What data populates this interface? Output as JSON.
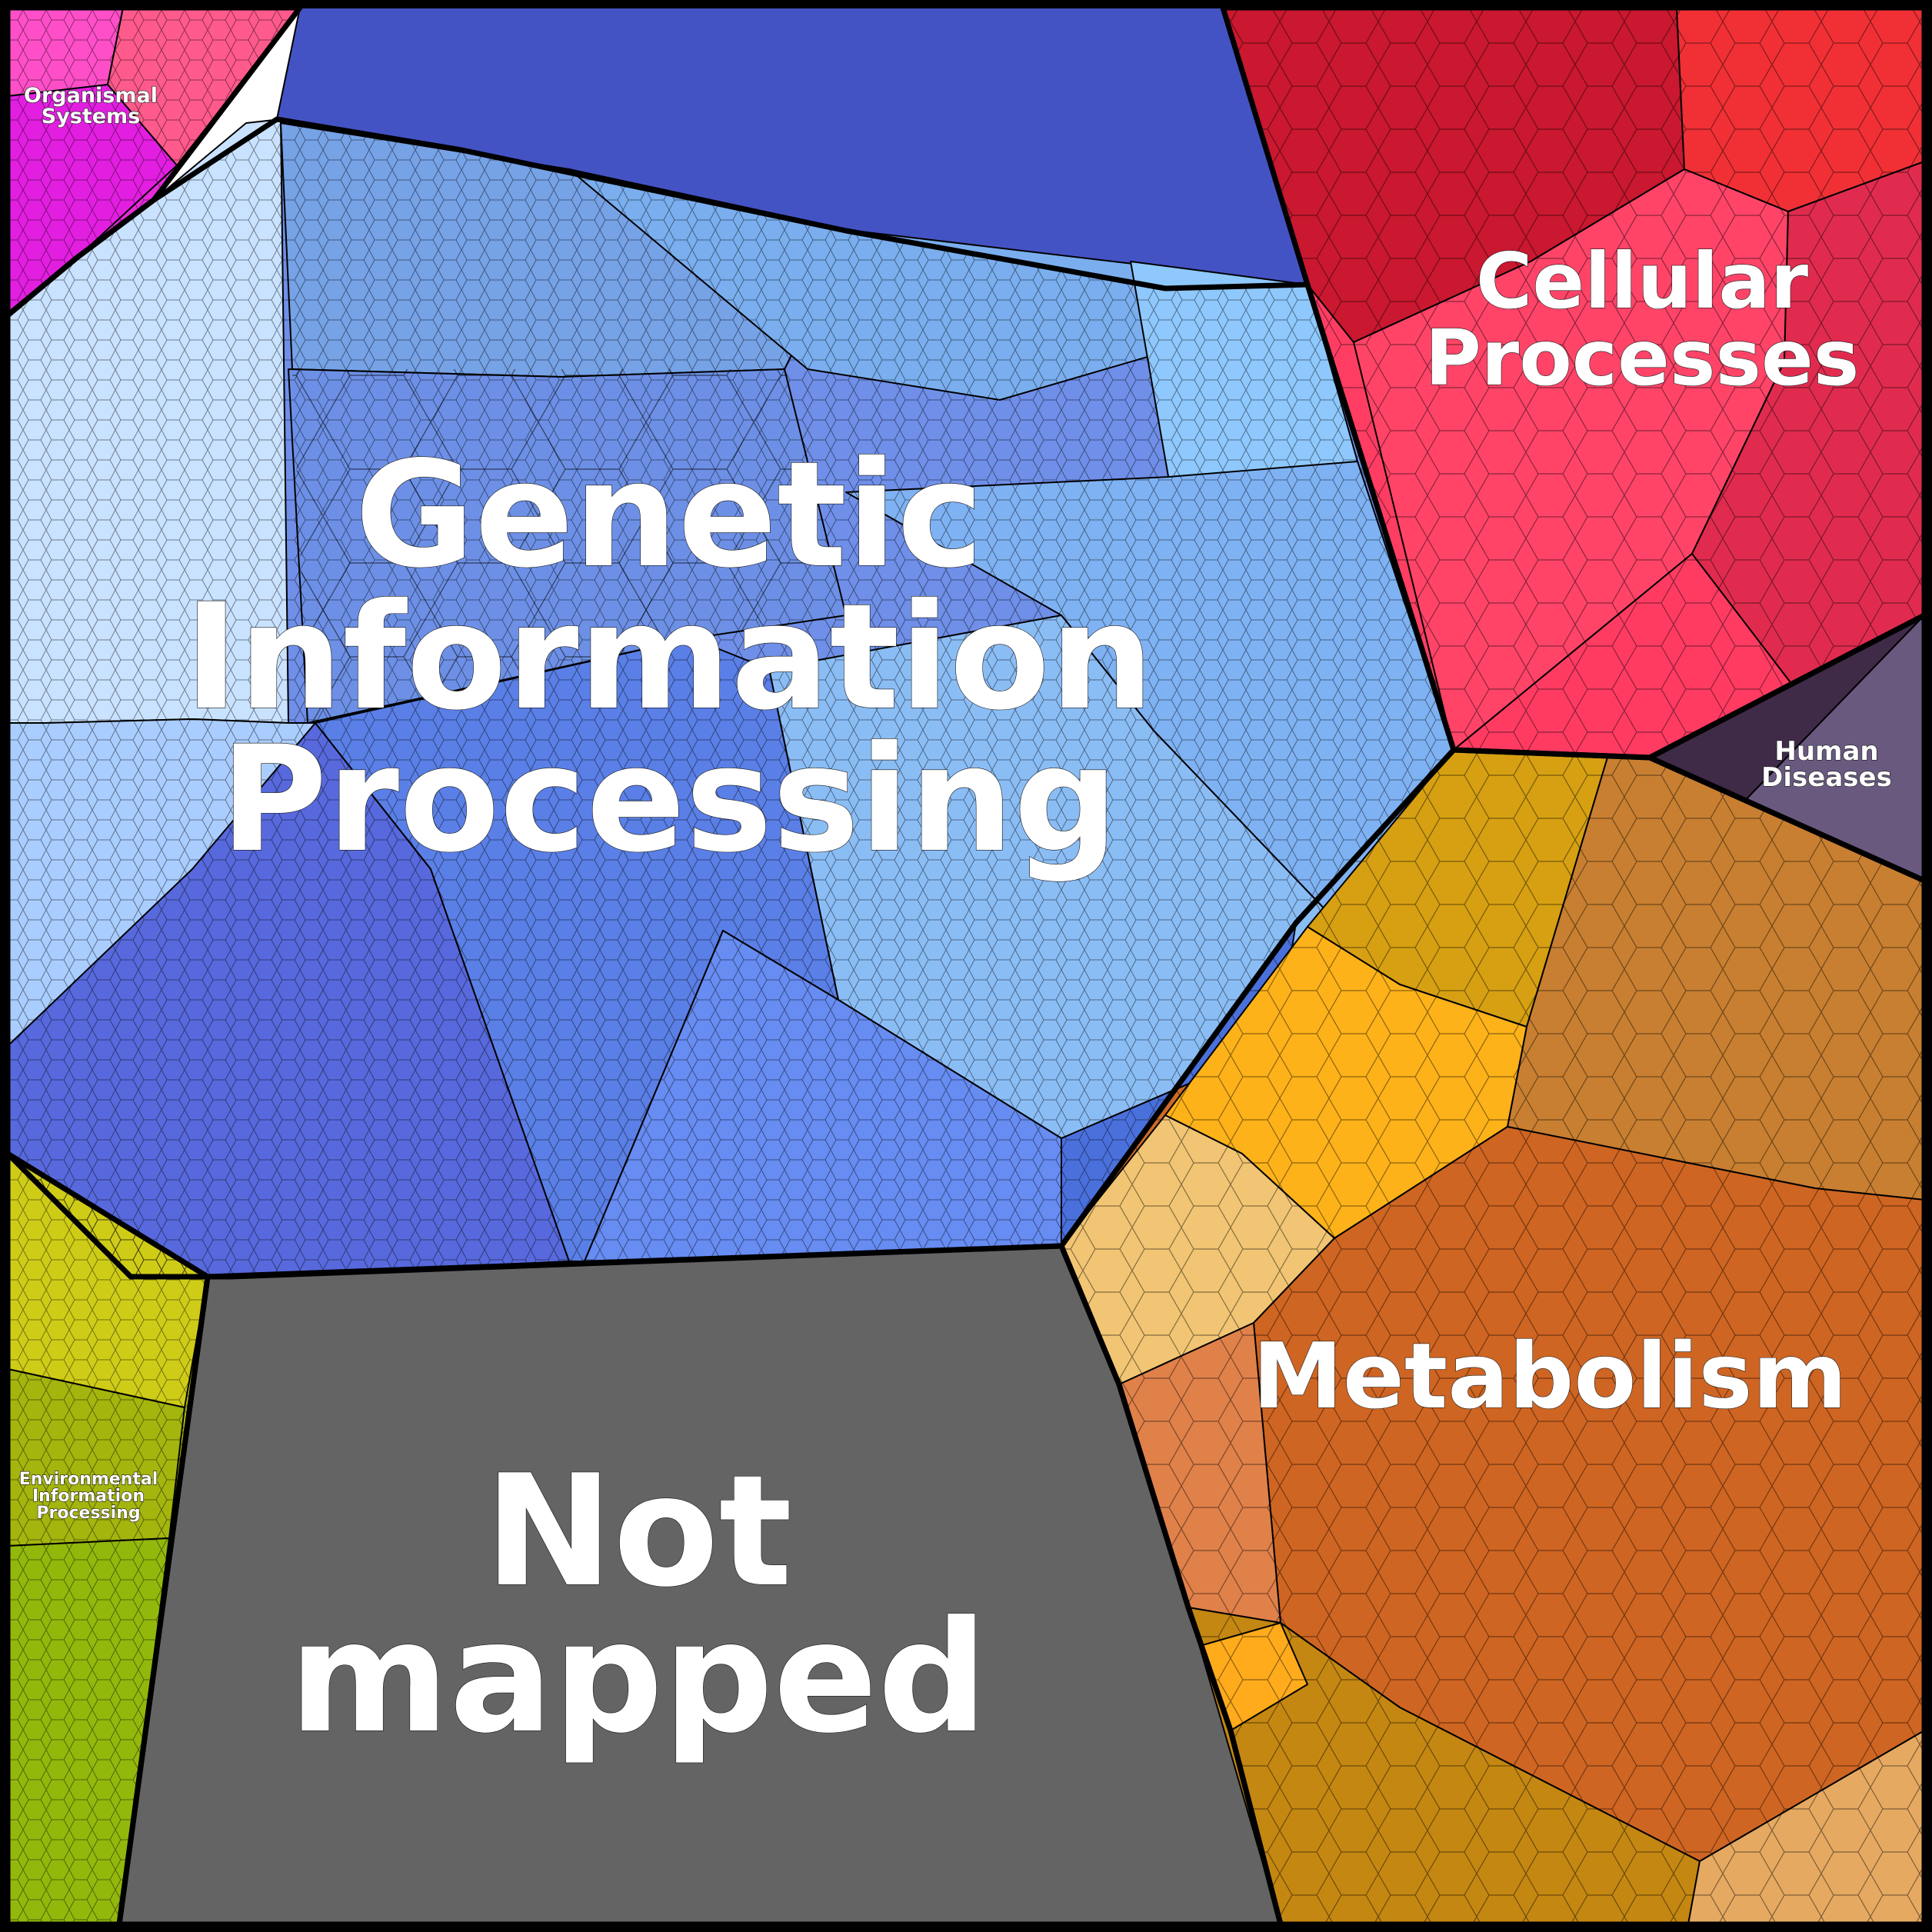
{
  "chart_data": {
    "type": "voronoi-treemap",
    "categories": [
      {
        "name": "Genetic Information Processing",
        "label_lines": [
          "Genetic",
          "Information",
          "Processing"
        ],
        "color": "#6f8fe8",
        "children": [
          {
            "color": "#c9e2ff"
          },
          {
            "color": "#aacdff"
          },
          {
            "color": "#4453c4"
          },
          {
            "color": "#76a2e6"
          },
          {
            "color": "#7aaeee"
          },
          {
            "color": "#6d90e6"
          },
          {
            "color": "#8ec8fc"
          },
          {
            "color": "#7fb2f3"
          },
          {
            "color": "#8bbdf5"
          },
          {
            "color": "#5769dc"
          },
          {
            "color": "#5a7fe6"
          },
          {
            "color": "#678cf2"
          },
          {
            "color": "#4a70dc"
          }
        ]
      },
      {
        "name": "Cellular Processes",
        "label_lines": [
          "Cellular",
          "Processes"
        ],
        "color": "#ff3d63",
        "children": [
          {
            "color": "#c9182f"
          },
          {
            "color": "#f03035"
          },
          {
            "color": "#ff4468"
          },
          {
            "color": "#e02b4f"
          },
          {
            "color": "#ff3b62"
          }
        ]
      },
      {
        "name": "Human Diseases",
        "label_lines": [
          "Human",
          "Diseases"
        ],
        "color": "#5a4a6a",
        "children": [
          {
            "color": "#3f2b48"
          },
          {
            "color": "#69597f"
          }
        ]
      },
      {
        "name": "Metabolism",
        "label_lines": [
          "Metabolism"
        ],
        "color": "#cd6a28",
        "children": [
          {
            "color": "#d6a012"
          },
          {
            "color": "#c87f31"
          },
          {
            "color": "#fdb21a"
          },
          {
            "color": "#f1c573"
          },
          {
            "color": "#cf6522"
          },
          {
            "color": "#e0814a"
          },
          {
            "color": "#c48712"
          },
          {
            "color": "#e5a962"
          },
          {
            "color": "#ffab1c"
          }
        ]
      },
      {
        "name": "Not mapped",
        "label_lines": [
          "Not",
          "mapped"
        ],
        "color": "#646464",
        "children": []
      },
      {
        "name": "Environmental Information Processing",
        "label_lines": [
          "Environmental",
          "Information",
          "Processing"
        ],
        "color": "#b6c00e",
        "children": [
          {
            "color": "#cfcc18"
          },
          {
            "color": "#a4b50e"
          },
          {
            "color": "#93b80c"
          }
        ]
      },
      {
        "name": "Organismal Systems",
        "label_lines": [
          "Organismal",
          "Systems"
        ],
        "color": "#e52bd8",
        "children": [
          {
            "color": "#ff4fc8"
          },
          {
            "color": "#ff5a8c"
          },
          {
            "color": "#e21fe0"
          }
        ]
      }
    ]
  }
}
